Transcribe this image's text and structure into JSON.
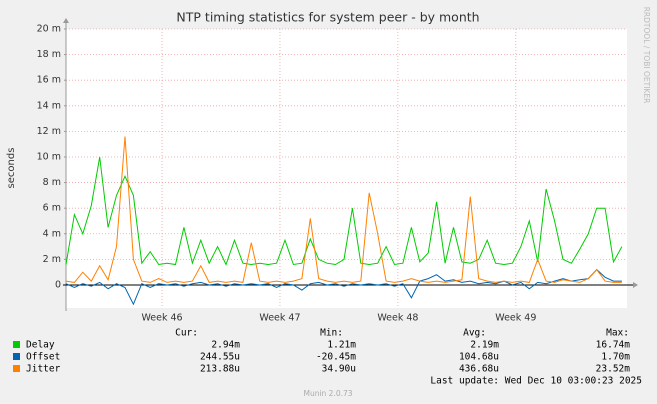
{
  "chart_data": {
    "type": "line",
    "title": "NTP timing statistics for system peer - by month",
    "y_label": "seconds",
    "side_text": "RRDTOOL / TOBI OETIKER",
    "footer": "Munin 2.0.73",
    "last_update": "Last update: Wed Dec 10 03:00:23 2025",
    "stat_headers": [
      "Cur:",
      "Min:",
      "Avg:",
      "Max:"
    ],
    "ylim": [
      -0.0018,
      0.02
    ],
    "yticks": [
      0,
      {
        "value": 0.002,
        "label": "2 m"
      },
      {
        "value": 0.004,
        "label": "4 m"
      },
      {
        "value": 0.006,
        "label": "6 m"
      },
      {
        "value": 0.008,
        "label": "8 m"
      },
      {
        "value": 0.01,
        "label": "10 m"
      },
      {
        "value": 0.012,
        "label": "12 m"
      },
      {
        "value": 0.014,
        "label": "14 m"
      },
      {
        "value": 0.016,
        "label": "16 m"
      },
      {
        "value": 0.018,
        "label": "18 m"
      },
      {
        "value": 0.02,
        "label": "20 m"
      }
    ],
    "xlim": [
      0,
      33.3
    ],
    "xticks": [
      {
        "value": 5.7,
        "label": "Week 46"
      },
      {
        "value": 12.7,
        "label": "Week 47"
      },
      {
        "value": 19.7,
        "label": "Week 48"
      },
      {
        "value": 26.7,
        "label": "Week 49"
      }
    ],
    "grid": true,
    "x": [
      0,
      0.5,
      1,
      1.5,
      2,
      2.5,
      3,
      3.5,
      4,
      4.5,
      5,
      5.5,
      6,
      6.5,
      7,
      7.5,
      8,
      8.5,
      9,
      9.5,
      10,
      10.5,
      11,
      11.5,
      12,
      12.5,
      13,
      13.5,
      14,
      14.5,
      15,
      15.5,
      16,
      16.5,
      17,
      17.5,
      18,
      18.5,
      19,
      19.5,
      20,
      20.5,
      21,
      21.5,
      22,
      22.5,
      23,
      23.5,
      24,
      24.5,
      25,
      25.5,
      26,
      26.5,
      27,
      27.5,
      28,
      28.5,
      29,
      29.5,
      30,
      30.5,
      31,
      31.5,
      32,
      32.5,
      33
    ],
    "series": [
      {
        "name": "Delay",
        "color": "#00cc00",
        "stats": [
          "2.94m",
          "1.21m",
          "2.19m",
          "16.74m"
        ],
        "values": [
          0.0016,
          0.0055,
          0.004,
          0.0062,
          0.01,
          0.0045,
          0.007,
          0.0085,
          0.007,
          0.0017,
          0.0026,
          0.0016,
          0.0017,
          0.0016,
          0.0045,
          0.0017,
          0.0035,
          0.0017,
          0.003,
          0.0016,
          0.0035,
          0.0017,
          0.0016,
          0.0017,
          0.0016,
          0.0017,
          0.0035,
          0.0016,
          0.0017,
          0.0036,
          0.002,
          0.0017,
          0.0016,
          0.002,
          0.006,
          0.0017,
          0.0016,
          0.0017,
          0.003,
          0.0016,
          0.0017,
          0.0045,
          0.0018,
          0.0025,
          0.0065,
          0.0017,
          0.0045,
          0.0018,
          0.0017,
          0.002,
          0.0035,
          0.0017,
          0.0016,
          0.0017,
          0.003,
          0.005,
          0.0018,
          0.0075,
          0.005,
          0.002,
          0.0017,
          0.0028,
          0.004,
          0.006,
          0.006,
          0.0018,
          0.003
        ]
      },
      {
        "name": "Offset",
        "color": "#0066b3",
        "stats": [
          "244.55u",
          "-20.45m",
          "104.68u",
          "1.70m"
        ],
        "values": [
          0.0001,
          -0.0002,
          0.0001,
          -0.0001,
          0.0002,
          -0.0003,
          0.0001,
          -0.0002,
          -0.0015,
          0.0001,
          -0.0002,
          0.0001,
          0,
          0.0001,
          -0.0001,
          0.0001,
          0.0002,
          0,
          0.0001,
          -0.0001,
          0.0001,
          0,
          0.0001,
          0,
          0.0001,
          -0.0002,
          0.0001,
          0,
          -0.0004,
          0.0001,
          0.0002,
          0,
          0.0001,
          -0.0001,
          0.0001,
          0,
          0.0001,
          0,
          0.0001,
          -0.0001,
          0.0001,
          -0.001,
          0.0003,
          0.0005,
          0.0008,
          0.0003,
          0.0004,
          0.0002,
          0.0003,
          0.0001,
          0.0002,
          0.0001,
          0.0003,
          0,
          0.0002,
          -0.0003,
          0.0002,
          0.0001,
          0.0003,
          0.0005,
          0.0003,
          0.0004,
          0.0005,
          0.0012,
          0.0006,
          0.0003,
          0.0003
        ]
      },
      {
        "name": "Jitter",
        "color": "#ff8000",
        "stats": [
          "213.88u",
          "34.90u",
          "436.68u",
          "23.52m"
        ],
        "values": [
          0.0003,
          0.0002,
          0.001,
          0.0003,
          0.0015,
          0.0004,
          0.003,
          0.0116,
          0.002,
          0.0003,
          0.0002,
          0.0005,
          0.0002,
          0.0003,
          0.0002,
          0.0003,
          0.0015,
          0.0002,
          0.0003,
          0.0002,
          0.0003,
          0.0002,
          0.0033,
          0.0003,
          0.0002,
          0.0003,
          0.0002,
          0.0003,
          0.0005,
          0.0052,
          0.0005,
          0.0003,
          0.0002,
          0.0003,
          0.0002,
          0.0003,
          0.0072,
          0.004,
          0.0003,
          0.0002,
          0.0003,
          0.0005,
          0.0003,
          0.0002,
          0.0003,
          0.0002,
          0.0003,
          0.0004,
          0.0069,
          0.0005,
          0.0003,
          0.0002,
          0.0003,
          0.0002,
          0.0003,
          0.0002,
          0.002,
          0.0003,
          0.0002,
          0.0004,
          0.0003,
          0.0002,
          0.0005,
          0.0012,
          0.0003,
          0.0002,
          0.0002
        ]
      }
    ]
  }
}
